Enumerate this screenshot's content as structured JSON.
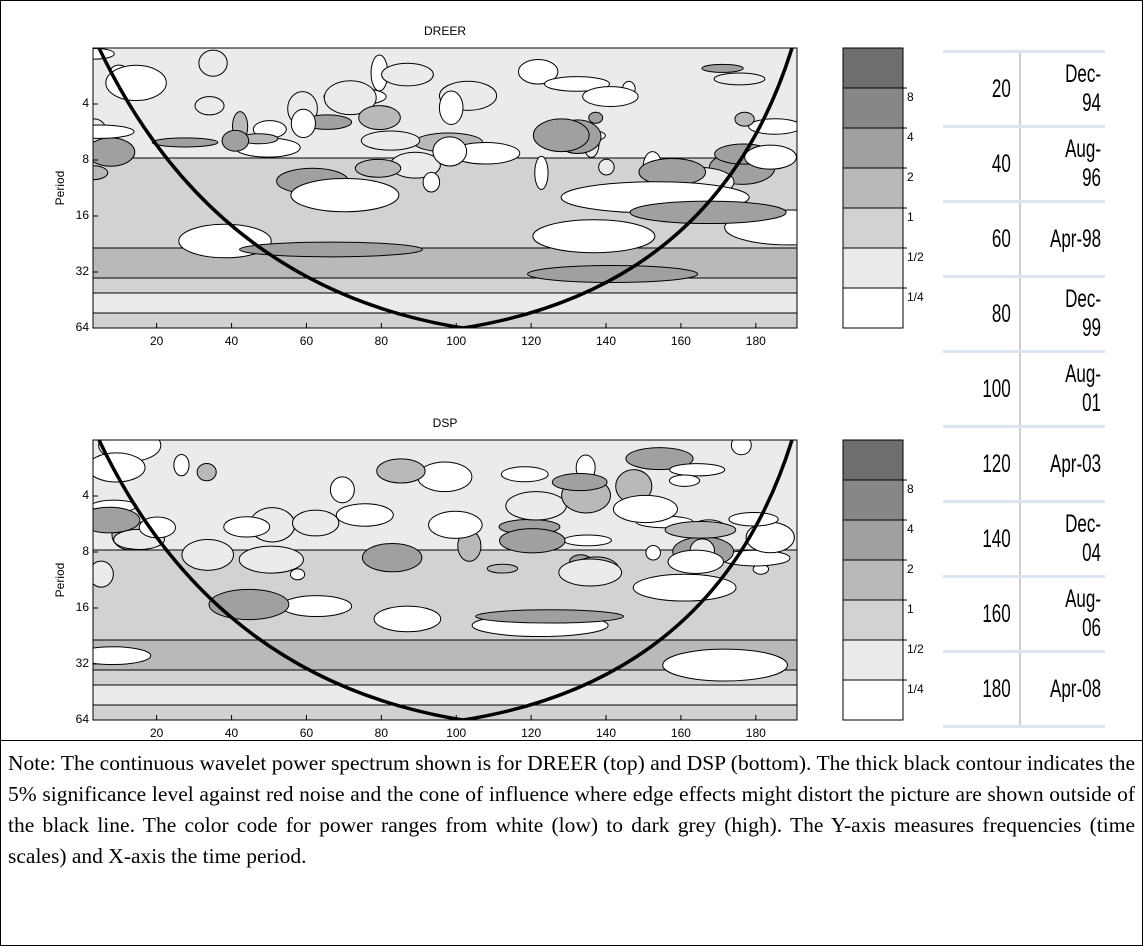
{
  "chart_data": [
    {
      "type": "contour",
      "title": "DREER",
      "y_label": "Period",
      "xlim": [
        3,
        191
      ],
      "xticks": [
        20,
        40,
        60,
        80,
        100,
        120,
        140,
        160,
        180
      ],
      "ylim": [
        2,
        64
      ],
      "yticks": [
        4,
        8,
        16,
        32,
        64
      ],
      "y_scale": "log",
      "colorbar_colors": [
        "#6e6e6e",
        "#878787",
        "#a0a0a0",
        "#b9b9b9",
        "#d2d2d2",
        "#ebebeb",
        "#ffffff"
      ],
      "colorbar_ticks": [
        8,
        4,
        2,
        1,
        {
          "value": 0.5,
          "label": "1/2"
        },
        {
          "value": 0.25,
          "label": "1/4"
        }
      ]
    },
    {
      "type": "contour",
      "title": "DSP",
      "y_label": "Period",
      "xlim": [
        3,
        191
      ],
      "xticks": [
        20,
        40,
        60,
        80,
        100,
        120,
        140,
        160,
        180
      ],
      "ylim": [
        2,
        64
      ],
      "yticks": [
        4,
        8,
        16,
        32,
        64
      ],
      "y_scale": "log",
      "colorbar_colors": [
        "#6e6e6e",
        "#878787",
        "#a0a0a0",
        "#b9b9b9",
        "#d2d2d2",
        "#ebebeb",
        "#ffffff"
      ],
      "colorbar_ticks": [
        8,
        4,
        2,
        1,
        {
          "value": 0.5,
          "label": "1/2"
        },
        {
          "value": 0.25,
          "label": "1/4"
        }
      ]
    }
  ],
  "table": {
    "rows": [
      [
        20,
        "Dec-94"
      ],
      [
        40,
        "Aug-96"
      ],
      [
        60,
        "Apr-98"
      ],
      [
        80,
        "Dec-99"
      ],
      [
        100,
        "Aug-01"
      ],
      [
        120,
        "Apr-03"
      ],
      [
        140,
        "Dec-04"
      ],
      [
        160,
        "Aug-06"
      ],
      [
        180,
        "Apr-08"
      ]
    ]
  },
  "note": "Note: The continuous wavelet power spectrum shown is for DREER (top) and DSP (bottom). The thick black contour indicates the 5% significance level against red noise and the cone of influence where edge effects might distort the picture are shown outside of the black line. The color code for power ranges from white (low) to dark grey (high). The Y-axis measures frequencies (time scales) and X-axis the time period."
}
